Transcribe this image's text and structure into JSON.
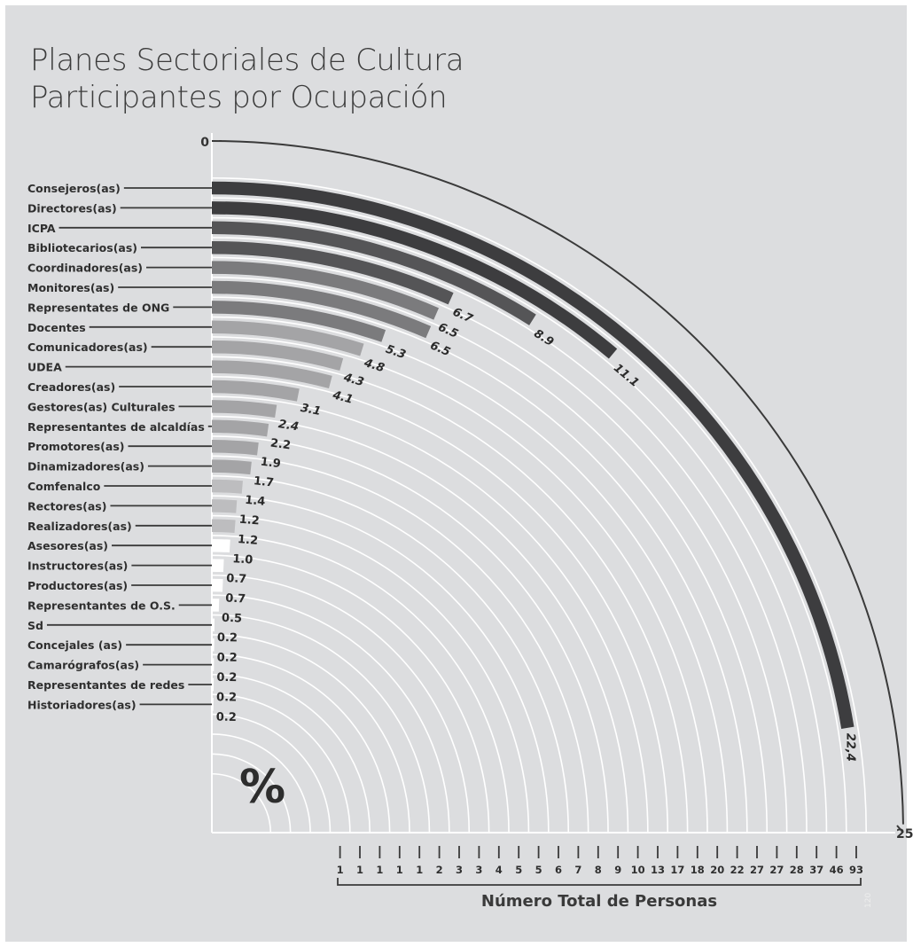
{
  "title": [
    "Planes Sectoriales de Cultura",
    "Participantes por Ocupación"
  ],
  "percent_symbol": "%",
  "page_number": "120",
  "colors": {
    "background": "#dcdddf",
    "darkest": "#3d3d3f",
    "dark": "#555557",
    "mid": "#7b7b7d",
    "light": "#a4a4a6",
    "lighter": "#bdbdbf",
    "white": "#ffffff"
  },
  "chart_data": {
    "type": "bar",
    "subtype": "radial",
    "title": "Planes Sectoriales de Cultura Participantes por Ocupación",
    "value_label": "%",
    "xlabel": "Número Total de Personas",
    "scale_start_label": "0",
    "scale_end_label": "25",
    "value_range": [
      0,
      25
    ],
    "series": [
      {
        "category": "Consejeros(as)",
        "percent": 22.4,
        "percent_label": "22,4",
        "count": 93
      },
      {
        "category": "Directores(as)",
        "percent": 11.1,
        "percent_label": "11.1",
        "count": 46
      },
      {
        "category": "ICPA",
        "percent": 8.9,
        "percent_label": "8.9",
        "count": 37
      },
      {
        "category": "Bibliotecarios(as)",
        "percent": 6.7,
        "percent_label": "6.7",
        "count": 28
      },
      {
        "category": "Coordinadores(as)",
        "percent": 6.5,
        "percent_label": "6.5",
        "count": 27
      },
      {
        "category": "Monitores(as)",
        "percent": 6.5,
        "percent_label": "6.5",
        "count": 27
      },
      {
        "category": "Representates de ONG",
        "percent": 5.3,
        "percent_label": "5.3",
        "count": 22
      },
      {
        "category": "Docentes",
        "percent": 4.8,
        "percent_label": "4.8",
        "count": 20
      },
      {
        "category": "Comunicadores(as)",
        "percent": 4.3,
        "percent_label": "4.3",
        "count": 18
      },
      {
        "category": "UDEA",
        "percent": 4.1,
        "percent_label": "4.1",
        "count": 17
      },
      {
        "category": "Creadores(as)",
        "percent": 3.1,
        "percent_label": "3.1",
        "count": 13
      },
      {
        "category": "Gestores(as) Culturales",
        "percent": 2.4,
        "percent_label": "2.4",
        "count": 10
      },
      {
        "category": "Representantes de alcaldías",
        "percent": 2.2,
        "percent_label": "2.2",
        "count": 9
      },
      {
        "category": "Promotores(as)",
        "percent": 1.9,
        "percent_label": "1.9",
        "count": 8
      },
      {
        "category": "Dinamizadores(as)",
        "percent": 1.7,
        "percent_label": "1.7",
        "count": 7
      },
      {
        "category": "Comfenalco",
        "percent": 1.4,
        "percent_label": "1.4",
        "count": 6
      },
      {
        "category": "Rectores(as)",
        "percent": 1.2,
        "percent_label": "1.2",
        "count": 5
      },
      {
        "category": "Realizadores(as)",
        "percent": 1.2,
        "percent_label": "1.2",
        "count": 5
      },
      {
        "category": "Asesores(as)",
        "percent": 1.0,
        "percent_label": "1.0",
        "count": 4
      },
      {
        "category": "Instructores(as)",
        "percent": 0.7,
        "percent_label": "0.7",
        "count": 3
      },
      {
        "category": "Productores(as)",
        "percent": 0.7,
        "percent_label": "0.7",
        "count": 3
      },
      {
        "category": "Representantes de O.S.",
        "percent": 0.5,
        "percent_label": "0.5",
        "count": 2
      },
      {
        "category": "Sd",
        "percent": 0.2,
        "percent_label": "0.2",
        "count": 1
      },
      {
        "category": "Concejales (as)",
        "percent": 0.2,
        "percent_label": "0.2",
        "count": 1
      },
      {
        "category": "Camarógrafos(as)",
        "percent": 0.2,
        "percent_label": "0.2",
        "count": 1
      },
      {
        "category": "Representantes de redes",
        "percent": 0.2,
        "percent_label": "0.2",
        "count": 1
      },
      {
        "category": "Historiadores(as)",
        "percent": 0.2,
        "percent_label": "0.2",
        "count": 1
      }
    ],
    "count_axis_labels": [
      "1",
      "1",
      "1",
      "1",
      "1",
      "2",
      "3",
      "3",
      "4",
      "5",
      "5",
      "6",
      "7",
      "8",
      "9",
      "10",
      "13",
      "17",
      "18",
      "20",
      "22",
      "27",
      "27",
      "28",
      "37",
      "46",
      "93"
    ]
  }
}
